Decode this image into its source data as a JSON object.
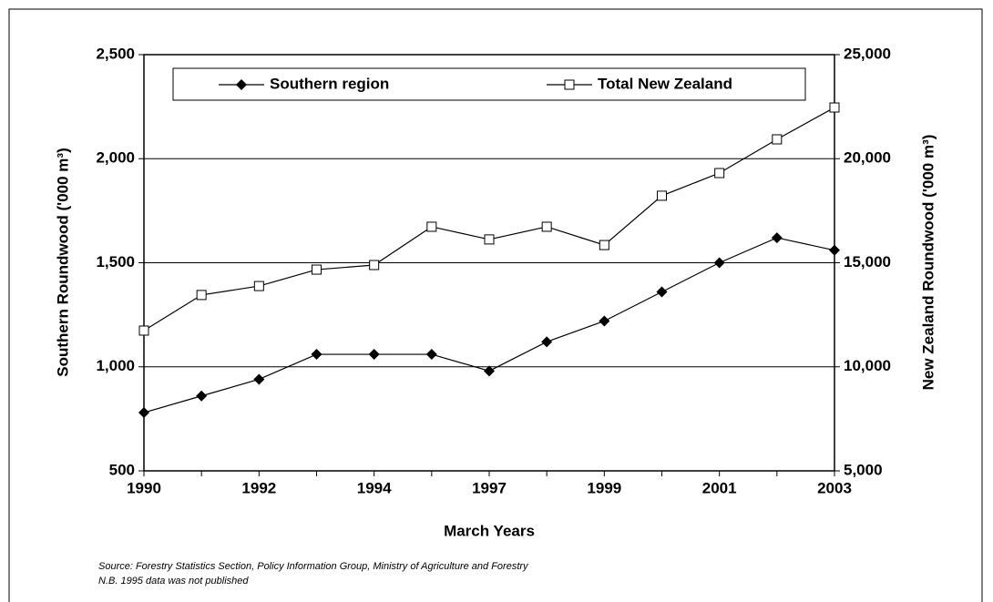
{
  "chart_data": {
    "type": "line",
    "categories": [
      "1990",
      null,
      "1992",
      null,
      "1994",
      null,
      "1997",
      null,
      "1999",
      null,
      "2001",
      null,
      "2003"
    ],
    "series": [
      {
        "name": "Southern region",
        "color": "#000000",
        "marker": "diamond",
        "values": [
          780,
          860,
          940,
          1060,
          1060,
          1060,
          980,
          1120,
          1220,
          1360,
          1500,
          1620,
          1560
        ]
      },
      {
        "name": "Total New Zealand",
        "color": "#000000",
        "marker": "square",
        "axis": "y2",
        "values": [
          11740,
          13450,
          13880,
          14670,
          14890,
          16730,
          16120,
          16730,
          15850,
          18220,
          19310,
          20930,
          22460
        ]
      }
    ],
    "xlabel": "March Years",
    "ylabel": "Southern Roundwood ('000 m³)",
    "y2label": "New Zealand Roundwood ('000 m³)",
    "ylim": [
      500,
      2500
    ],
    "yticks": [
      500,
      {
        "value": 1000,
        "label": "1,000"
      },
      {
        "value": 1500,
        "label": "1,500"
      },
      {
        "value": 2000,
        "label": "2,000"
      },
      {
        "value": 2500,
        "label": "2,500"
      }
    ],
    "y2lim": [
      5000,
      25000
    ],
    "y2ticks": [
      {
        "value": 5000,
        "label": "5,000"
      },
      {
        "value": 10000,
        "label": "10,000"
      },
      {
        "value": 15000,
        "label": "15,000"
      },
      {
        "value": 20000,
        "label": "20,000"
      },
      {
        "value": 25000,
        "label": "25,000"
      }
    ],
    "grid": true,
    "legend": "top",
    "notes": [
      "Source: Forestry Statistics Section, Policy Information Group, Ministry of Agriculture and Forestry",
      "N.B.  1995 data was not published"
    ]
  }
}
